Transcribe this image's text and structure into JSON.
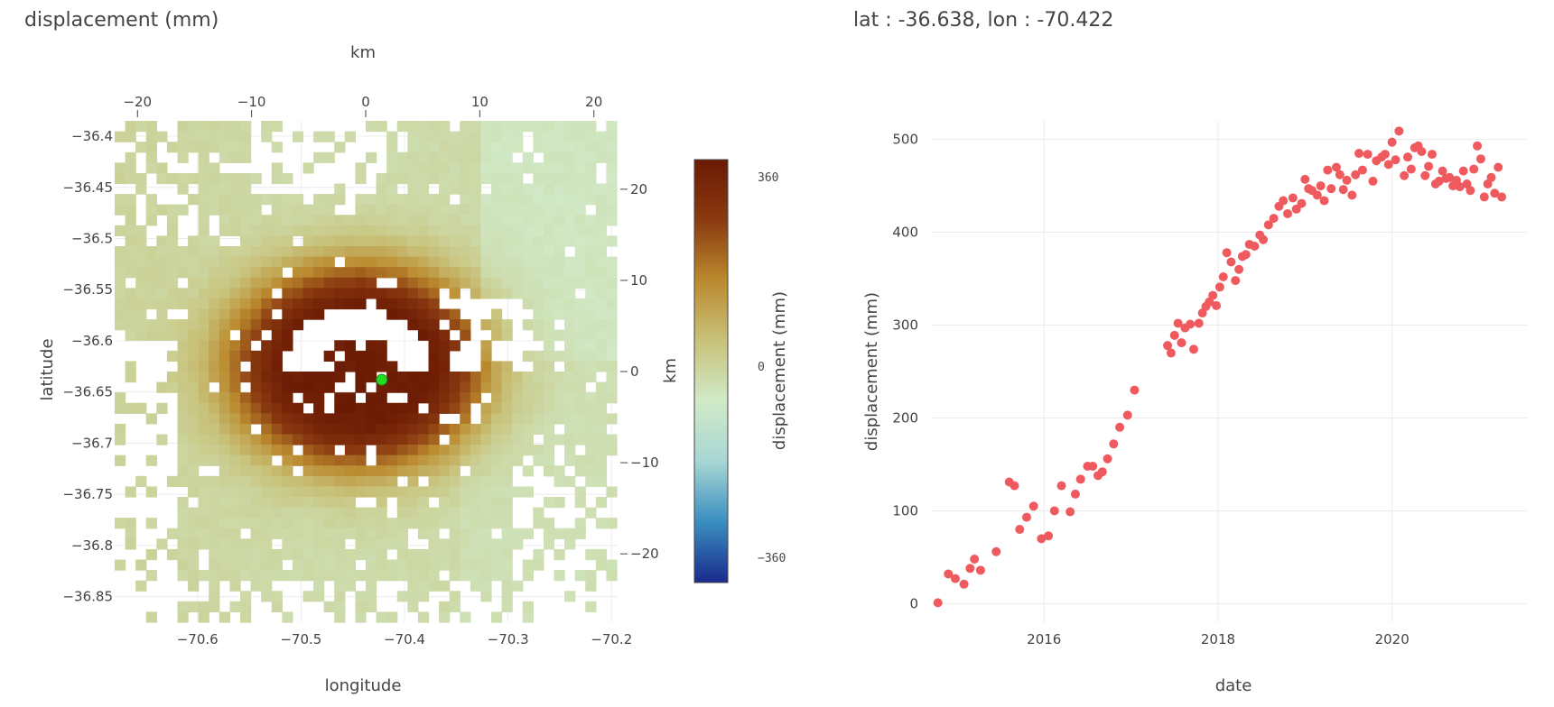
{
  "map_panel": {
    "title": "displacement (mm)",
    "xlabel": "longitude",
    "ylabel": "latitude",
    "top_axis_label": "km",
    "right_axis_label": "km",
    "colorbar_label": "displacement (mm)",
    "marker_color": "#22dd22"
  },
  "ts_panel": {
    "title": "lat : -36.638, lon : -70.422",
    "xlabel": "date",
    "ylabel": "displacement (mm)",
    "point_color": "#ef5a5f"
  },
  "chart_data": [
    {
      "type": "heatmap",
      "title": "displacement (mm)",
      "xlabel": "longitude",
      "ylabel": "latitude",
      "xlim": [
        -70.68,
        -70.195
      ],
      "ylim": [
        -36.875,
        -36.385
      ],
      "x_ticks": [
        "−70.6",
        "−70.5",
        "−70.4",
        "−70.3",
        "−70.2"
      ],
      "x_tick_values": [
        -70.6,
        -70.5,
        -70.4,
        -70.3,
        -70.2
      ],
      "y_ticks": [
        "−36.4",
        "−36.45",
        "−36.5",
        "−36.55",
        "−36.6",
        "−36.65",
        "−36.7",
        "−36.75",
        "−36.8",
        "−36.85"
      ],
      "y_tick_values": [
        -36.4,
        -36.45,
        -36.5,
        -36.55,
        -36.6,
        -36.65,
        -36.7,
        -36.75,
        -36.8,
        -36.85
      ],
      "top_axis": {
        "label": "km",
        "ticks": [
          "−20",
          "−10",
          "0",
          "10",
          "20"
        ],
        "values": [
          -20,
          -10,
          0,
          10,
          20
        ],
        "range": [
          -22,
          22
        ]
      },
      "right_axis": {
        "label": "km",
        "ticks": [
          "20",
          "10",
          "0",
          "−10",
          "−20"
        ],
        "values": [
          20,
          10,
          0,
          -10,
          -20
        ],
        "range": [
          -27.5,
          27.5
        ]
      },
      "colorscale": {
        "label": "displacement (mm)",
        "min": -360,
        "max": 360,
        "ticks": [
          "360",
          "0",
          "−360"
        ],
        "tick_values": [
          360,
          0,
          -360
        ],
        "colors": [
          "#1a2a8c",
          "#3a8ec0",
          "#a8d6d4",
          "#d0eac8",
          "#c8c27a",
          "#bb8a2e",
          "#8a3a10",
          "#6b1a04"
        ]
      },
      "selected_point": {
        "lon": -70.422,
        "lat": -36.638
      },
      "uplift_center": {
        "lon": -70.445,
        "lat": -36.625
      }
    },
    {
      "type": "scatter",
      "title": "lat : -36.638, lon : -70.422",
      "xlabel": "date",
      "ylabel": "displacement (mm)",
      "xlim": [
        2014.7,
        2021.55
      ],
      "ylim": [
        -20,
        520
      ],
      "x_ticks": [
        "2016",
        "2018",
        "2020"
      ],
      "x_tick_values": [
        2016,
        2018,
        2020
      ],
      "y_ticks": [
        "0",
        "100",
        "200",
        "300",
        "400",
        "500"
      ],
      "y_tick_values": [
        0,
        100,
        200,
        300,
        400,
        500
      ],
      "x": [
        2014.78,
        2014.9,
        2014.98,
        2015.08,
        2015.15,
        2015.2,
        2015.27,
        2015.45,
        2015.6,
        2015.66,
        2015.72,
        2015.8,
        2015.88,
        2015.97,
        2016.05,
        2016.12,
        2016.2,
        2016.3,
        2016.36,
        2016.42,
        2016.5,
        2016.56,
        2016.62,
        2016.67,
        2016.73,
        2016.8,
        2016.87,
        2016.96,
        2017.04,
        2017.42,
        2017.46,
        2017.5,
        2017.54,
        2017.58,
        2017.62,
        2017.68,
        2017.72,
        2017.78,
        2017.82,
        2017.86,
        2017.9,
        2017.94,
        2017.98,
        2018.02,
        2018.06,
        2018.1,
        2018.15,
        2018.2,
        2018.24,
        2018.28,
        2018.32,
        2018.36,
        2018.42,
        2018.48,
        2018.52,
        2018.58,
        2018.64,
        2018.7,
        2018.75,
        2018.8,
        2018.86,
        2018.9,
        2018.96,
        2019.0,
        2019.04,
        2019.08,
        2019.14,
        2019.18,
        2019.22,
        2019.26,
        2019.3,
        2019.36,
        2019.4,
        2019.44,
        2019.48,
        2019.54,
        2019.58,
        2019.62,
        2019.66,
        2019.72,
        2019.78,
        2019.82,
        2019.88,
        2019.92,
        2019.96,
        2020.0,
        2020.04,
        2020.08,
        2020.14,
        2020.18,
        2020.22,
        2020.26,
        2020.3,
        2020.34,
        2020.38,
        2020.42,
        2020.46,
        2020.5,
        2020.54,
        2020.58,
        2020.62,
        2020.66,
        2020.7,
        2020.74,
        2020.78,
        2020.82,
        2020.86,
        2020.9,
        2020.94,
        2020.98,
        2021.02,
        2021.06,
        2021.1,
        2021.14,
        2021.18,
        2021.22,
        2021.26
      ],
      "y": [
        1,
        32,
        27,
        21,
        38,
        48,
        36,
        56,
        131,
        127,
        80,
        93,
        105,
        70,
        73,
        100,
        127,
        99,
        118,
        134,
        148,
        148,
        138,
        142,
        156,
        172,
        190,
        203,
        230,
        278,
        270,
        289,
        302,
        281,
        297,
        301,
        274,
        302,
        313,
        320,
        325,
        332,
        321,
        341,
        352,
        378,
        368,
        348,
        360,
        374,
        376,
        387,
        385,
        397,
        392,
        408,
        415,
        428,
        434,
        420,
        437,
        425,
        431,
        457,
        447,
        445,
        440,
        450,
        434,
        467,
        447,
        470,
        462,
        446,
        456,
        440,
        462,
        485,
        467,
        484,
        455,
        477,
        481,
        484,
        473,
        497,
        478,
        509,
        461,
        481,
        468,
        491,
        493,
        487,
        461,
        471,
        484,
        452,
        455,
        466,
        458,
        459,
        450,
        456,
        449,
        466,
        452,
        445,
        468,
        493,
        479,
        438,
        452,
        459,
        442,
        470,
        438
      ]
    }
  ]
}
